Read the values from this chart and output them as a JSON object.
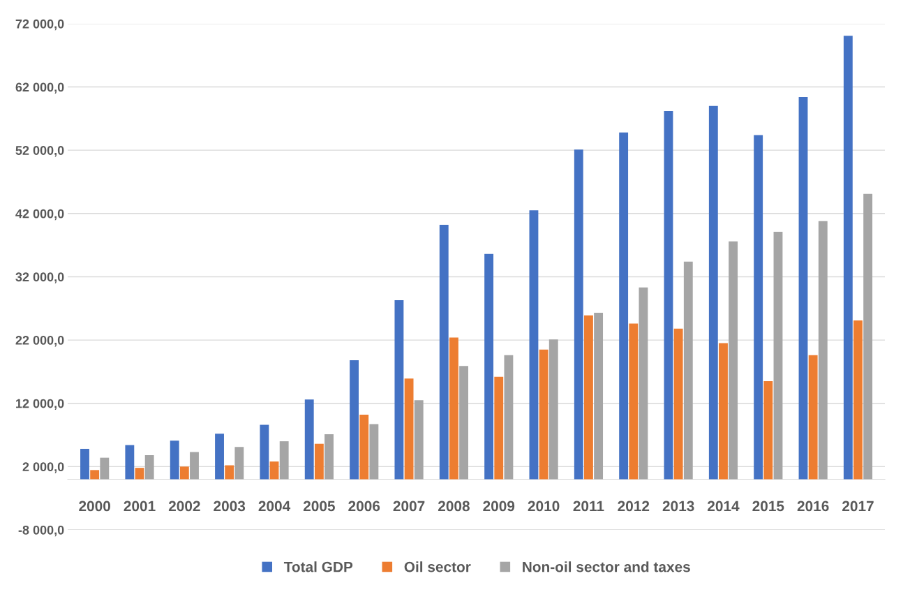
{
  "chart_data": {
    "type": "bar",
    "categories": [
      "2000",
      "2001",
      "2002",
      "2003",
      "2004",
      "2005",
      "2006",
      "2007",
      "2008",
      "2009",
      "2010",
      "2011",
      "2012",
      "2013",
      "2014",
      "2015",
      "2016",
      "2017"
    ],
    "series": [
      {
        "name": "Total GDP",
        "color": "#4472c4",
        "values": [
          4800,
          5400,
          6100,
          7200,
          8600,
          12600,
          18800,
          28300,
          40200,
          35600,
          42500,
          52100,
          54800,
          58200,
          59000,
          54400,
          60400,
          70100
        ]
      },
      {
        "name": "Oil sector",
        "color": "#ed7d31",
        "values": [
          1450,
          1800,
          2000,
          2200,
          2800,
          5600,
          10200,
          15900,
          22400,
          16200,
          20500,
          25900,
          24600,
          23800,
          21500,
          15500,
          19600,
          25100
        ]
      },
      {
        "name": "Non-oil sector and taxes",
        "color": "#a5a5a5",
        "values": [
          3400,
          3800,
          4300,
          5100,
          6000,
          7100,
          8700,
          12500,
          17900,
          19600,
          22100,
          26300,
          30300,
          34400,
          37600,
          39100,
          40800,
          45100
        ]
      }
    ],
    "ylim": [
      -8000,
      72000
    ],
    "yticks": [
      {
        "value": -8000,
        "label": "-8 000,0"
      },
      {
        "value": 2000,
        "label": "2 000,0"
      },
      {
        "value": 12000,
        "label": "12 000,0"
      },
      {
        "value": 22000,
        "label": "22 000,0"
      },
      {
        "value": 32000,
        "label": "32 000,0"
      },
      {
        "value": 42000,
        "label": "42 000,0"
      },
      {
        "value": 52000,
        "label": "52 000,0"
      },
      {
        "value": 62000,
        "label": "62 000,0"
      },
      {
        "value": 72000,
        "label": "72 000,0"
      }
    ],
    "grid": "y",
    "legend": "bottom"
  }
}
